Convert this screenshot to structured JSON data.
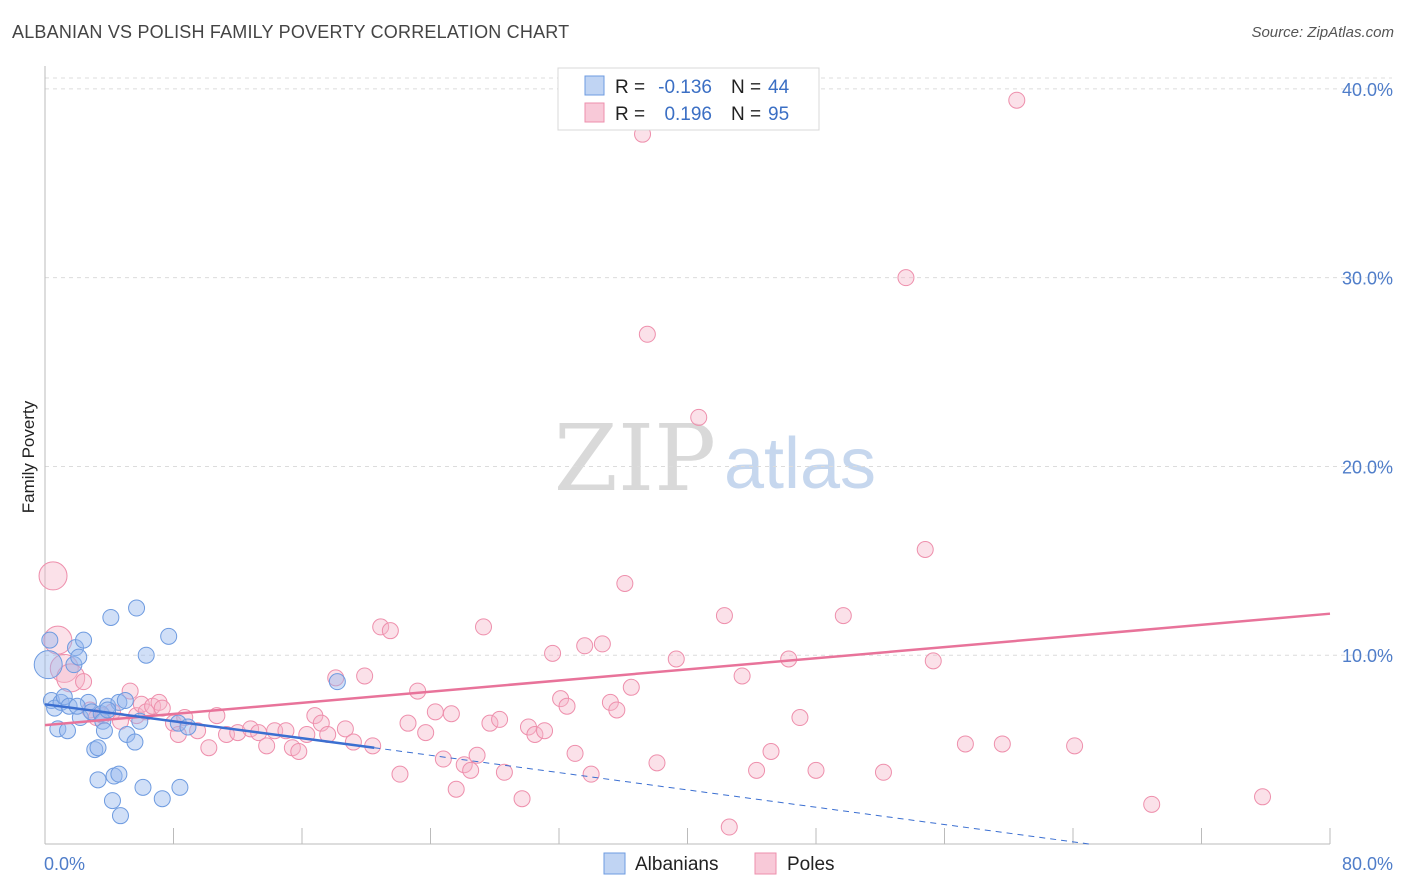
{
  "header": {
    "title": "ALBANIAN VS POLISH FAMILY POVERTY CORRELATION CHART",
    "source": "Source: ZipAtlas.com"
  },
  "legend": {
    "r_label": "R =",
    "n_label": "N =",
    "albanians": {
      "r": "-0.136",
      "n": "44"
    },
    "poles": {
      "r": "0.196",
      "n": "95"
    }
  },
  "watermark": {
    "zip": "ZIP",
    "atlas": "atlas"
  },
  "chart_data": {
    "type": "scatter",
    "title": "ALBANIAN VS POLISH FAMILY POVERTY CORRELATION CHART",
    "ylabel": "Family Poverty",
    "xlabel": "",
    "xlim": [
      0,
      80
    ],
    "ylim": [
      0,
      41
    ],
    "x_tick_labels": [
      "0.0%",
      "80.0%"
    ],
    "y_tick_values": [
      10,
      20,
      30,
      40
    ],
    "y_tick_labels": [
      "10.0%",
      "20.0%",
      "30.0%",
      "40.0%"
    ],
    "grid": "horizontal dashed",
    "legend_position": "top-center",
    "colors": {
      "albanians": "#6e9be0",
      "poles": "#ee8fac",
      "albanians_line": "#3b6fd1",
      "poles_line": "#e8739a"
    },
    "series": [
      {
        "name": "Albanians",
        "points": [
          [
            0.2,
            9.5,
            2
          ],
          [
            0.3,
            10.8,
            1
          ],
          [
            0.4,
            7.6,
            1
          ],
          [
            0.6,
            7.2,
            1
          ],
          [
            0.8,
            6.1,
            1
          ],
          [
            1.0,
            7.5,
            1
          ],
          [
            1.2,
            7.8,
            1
          ],
          [
            1.4,
            6.0,
            1
          ],
          [
            1.5,
            7.3,
            1
          ],
          [
            1.8,
            9.5,
            1
          ],
          [
            1.9,
            10.4,
            1
          ],
          [
            2.1,
            9.9,
            1
          ],
          [
            2.2,
            6.7,
            1
          ],
          [
            2.4,
            10.8,
            1
          ],
          [
            2.7,
            7.5,
            1
          ],
          [
            2.9,
            7.0,
            1
          ],
          [
            3.1,
            5.0,
            1
          ],
          [
            3.3,
            5.1,
            1
          ],
          [
            3.3,
            3.4,
            1
          ],
          [
            3.5,
            6.9,
            1
          ],
          [
            3.6,
            6.5,
            1
          ],
          [
            3.7,
            6.0,
            1
          ],
          [
            3.9,
            7.3,
            1
          ],
          [
            4.1,
            12.0,
            1
          ],
          [
            4.2,
            2.3,
            1
          ],
          [
            4.3,
            3.6,
            1
          ],
          [
            4.6,
            3.7,
            1
          ],
          [
            4.6,
            7.5,
            1
          ],
          [
            4.7,
            1.5,
            1
          ],
          [
            5.0,
            7.6,
            1
          ],
          [
            5.1,
            5.8,
            1
          ],
          [
            5.6,
            5.4,
            1
          ],
          [
            5.7,
            12.5,
            1
          ],
          [
            5.9,
            6.5,
            1
          ],
          [
            6.1,
            3.0,
            1
          ],
          [
            6.3,
            10.0,
            1
          ],
          [
            7.3,
            2.4,
            1
          ],
          [
            7.7,
            11.0,
            1
          ],
          [
            8.3,
            6.4,
            1
          ],
          [
            8.4,
            3.0,
            1
          ],
          [
            8.9,
            6.2,
            1
          ],
          [
            18.2,
            8.6,
            1
          ],
          [
            2.0,
            7.3,
            1
          ],
          [
            3.9,
            7.1,
            1
          ]
        ],
        "trend": {
          "x": [
            0,
            20.5
          ],
          "y": [
            7.4,
            5.1
          ]
        },
        "trend_dashed": {
          "x": [
            20.5,
            65
          ],
          "y": [
            5.1,
            0.0
          ]
        }
      },
      {
        "name": "Poles",
        "points": [
          [
            0.5,
            14.2,
            2
          ],
          [
            0.8,
            10.8,
            2
          ],
          [
            1.2,
            9.3,
            2
          ],
          [
            1.6,
            8.8,
            2
          ],
          [
            2.4,
            8.6,
            1
          ],
          [
            2.8,
            7.1,
            1
          ],
          [
            3.2,
            6.7,
            1
          ],
          [
            3.6,
            6.8,
            1
          ],
          [
            4.2,
            7.0,
            1
          ],
          [
            4.7,
            6.5,
            1
          ],
          [
            5.3,
            8.1,
            1
          ],
          [
            5.7,
            6.8,
            1
          ],
          [
            6.0,
            7.4,
            1
          ],
          [
            6.3,
            7.0,
            1
          ],
          [
            6.7,
            7.3,
            1
          ],
          [
            7.1,
            7.5,
            1
          ],
          [
            7.3,
            7.2,
            1
          ],
          [
            8.0,
            6.4,
            1
          ],
          [
            8.3,
            5.8,
            1
          ],
          [
            8.7,
            6.7,
            1
          ],
          [
            9.5,
            6.0,
            1
          ],
          [
            10.2,
            5.1,
            1
          ],
          [
            10.7,
            6.8,
            1
          ],
          [
            11.3,
            5.8,
            1
          ],
          [
            12.0,
            5.9,
            1
          ],
          [
            12.8,
            6.1,
            1
          ],
          [
            13.3,
            5.9,
            1
          ],
          [
            13.8,
            5.2,
            1
          ],
          [
            14.3,
            6.0,
            1
          ],
          [
            15.0,
            6.0,
            1
          ],
          [
            15.4,
            5.1,
            1
          ],
          [
            15.8,
            4.9,
            1
          ],
          [
            16.3,
            5.8,
            1
          ],
          [
            16.8,
            6.8,
            1
          ],
          [
            17.2,
            6.4,
            1
          ],
          [
            17.6,
            5.8,
            1
          ],
          [
            18.1,
            8.8,
            1
          ],
          [
            18.7,
            6.1,
            1
          ],
          [
            19.2,
            5.4,
            1
          ],
          [
            19.9,
            8.9,
            1
          ],
          [
            20.4,
            5.2,
            1
          ],
          [
            20.9,
            11.5,
            1
          ],
          [
            21.5,
            11.3,
            1
          ],
          [
            22.1,
            3.7,
            1
          ],
          [
            22.6,
            6.4,
            1
          ],
          [
            23.2,
            8.1,
            1
          ],
          [
            23.7,
            5.9,
            1
          ],
          [
            24.3,
            7.0,
            1
          ],
          [
            24.8,
            4.5,
            1
          ],
          [
            25.3,
            6.9,
            1
          ],
          [
            25.6,
            2.9,
            1
          ],
          [
            26.1,
            4.2,
            1
          ],
          [
            26.5,
            3.9,
            1
          ],
          [
            26.9,
            4.7,
            1
          ],
          [
            27.3,
            11.5,
            1
          ],
          [
            27.7,
            6.4,
            1
          ],
          [
            28.3,
            6.6,
            1
          ],
          [
            28.6,
            3.8,
            1
          ],
          [
            29.7,
            2.4,
            1
          ],
          [
            30.1,
            6.2,
            1
          ],
          [
            30.5,
            5.8,
            1
          ],
          [
            31.1,
            6.0,
            1
          ],
          [
            31.6,
            10.1,
            1
          ],
          [
            32.1,
            7.7,
            1
          ],
          [
            32.5,
            7.3,
            1
          ],
          [
            33.0,
            4.8,
            1
          ],
          [
            33.6,
            10.5,
            1
          ],
          [
            34.0,
            3.7,
            1
          ],
          [
            34.7,
            10.6,
            1
          ],
          [
            35.2,
            7.5,
            1
          ],
          [
            35.6,
            7.1,
            1
          ],
          [
            36.1,
            13.8,
            1
          ],
          [
            36.5,
            8.3,
            1
          ],
          [
            37.2,
            37.6,
            1
          ],
          [
            37.5,
            27.0,
            1
          ],
          [
            38.1,
            4.3,
            1
          ],
          [
            39.3,
            9.8,
            1
          ],
          [
            40.7,
            22.6,
            1
          ],
          [
            42.3,
            12.1,
            1
          ],
          [
            42.6,
            0.9,
            1
          ],
          [
            43.4,
            8.9,
            1
          ],
          [
            44.3,
            3.9,
            1
          ],
          [
            45.2,
            4.9,
            1
          ],
          [
            46.3,
            9.8,
            1
          ],
          [
            47.0,
            6.7,
            1
          ],
          [
            48.0,
            3.9,
            1
          ],
          [
            49.7,
            12.1,
            1
          ],
          [
            52.2,
            3.8,
            1
          ],
          [
            53.6,
            30.0,
            1
          ],
          [
            54.8,
            15.6,
            1
          ],
          [
            55.3,
            9.7,
            1
          ],
          [
            57.3,
            5.3,
            1
          ],
          [
            59.6,
            5.3,
            1
          ],
          [
            60.5,
            39.4,
            1
          ],
          [
            64.1,
            5.2,
            1
          ],
          [
            68.9,
            2.1,
            1
          ],
          [
            75.8,
            2.5,
            1
          ]
        ],
        "trend": {
          "x": [
            0,
            80
          ],
          "y": [
            6.3,
            12.2
          ]
        }
      }
    ]
  },
  "bottom_legend": {
    "albanians": "Albanians",
    "poles": "Poles"
  }
}
